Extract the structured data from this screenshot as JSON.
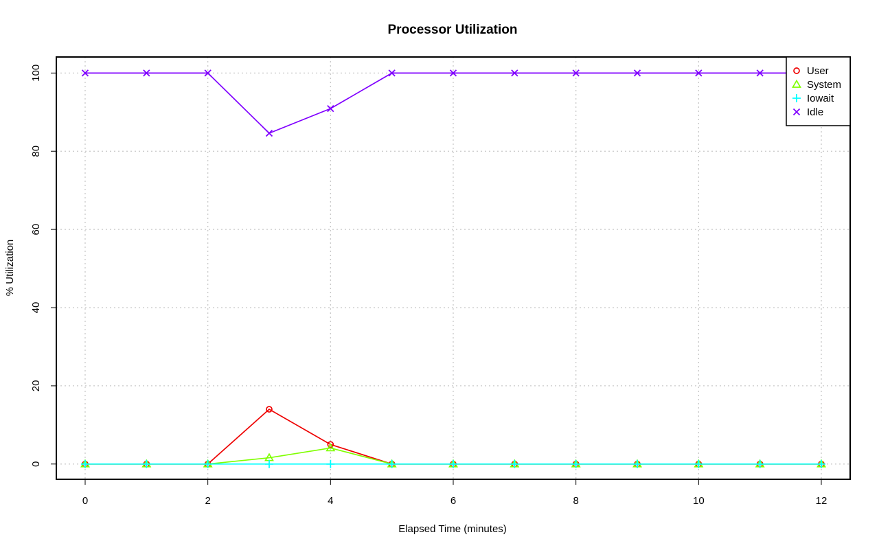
{
  "chart_data": {
    "type": "line",
    "title": "Processor Utilization",
    "xlabel": "Elapsed Time (minutes)",
    "ylabel": "% Utilization",
    "x": [
      0,
      1,
      2,
      3,
      4,
      5,
      6,
      7,
      8,
      9,
      10,
      11,
      12
    ],
    "xlim": [
      -0.47,
      12.47
    ],
    "ylim": [
      -3.9,
      104.1
    ],
    "x_ticks": [
      0,
      2,
      4,
      6,
      8,
      10,
      12
    ],
    "y_ticks": [
      0,
      20,
      40,
      60,
      80,
      100
    ],
    "grid": true,
    "legend_position": "top-right",
    "series": [
      {
        "name": "User",
        "color": "#ee0000",
        "marker": "circle",
        "values": [
          0,
          0,
          0,
          14,
          5,
          0,
          0,
          0,
          0,
          0,
          0,
          0,
          0
        ]
      },
      {
        "name": "System",
        "color": "#7fff00",
        "marker": "triangle",
        "values": [
          0,
          0,
          0,
          1.6,
          4.1,
          0,
          0,
          0,
          0,
          0,
          0,
          0,
          0
        ]
      },
      {
        "name": "Iowait",
        "color": "#00ffff",
        "marker": "plus",
        "values": [
          0,
          0,
          0,
          0,
          0,
          0,
          0,
          0,
          0,
          0,
          0,
          0,
          0
        ]
      },
      {
        "name": "Idle",
        "color": "#8000ff",
        "marker": "cross",
        "values": [
          100,
          100,
          100,
          84.6,
          90.9,
          100,
          100,
          100,
          100,
          100,
          100,
          100,
          100
        ]
      }
    ]
  }
}
